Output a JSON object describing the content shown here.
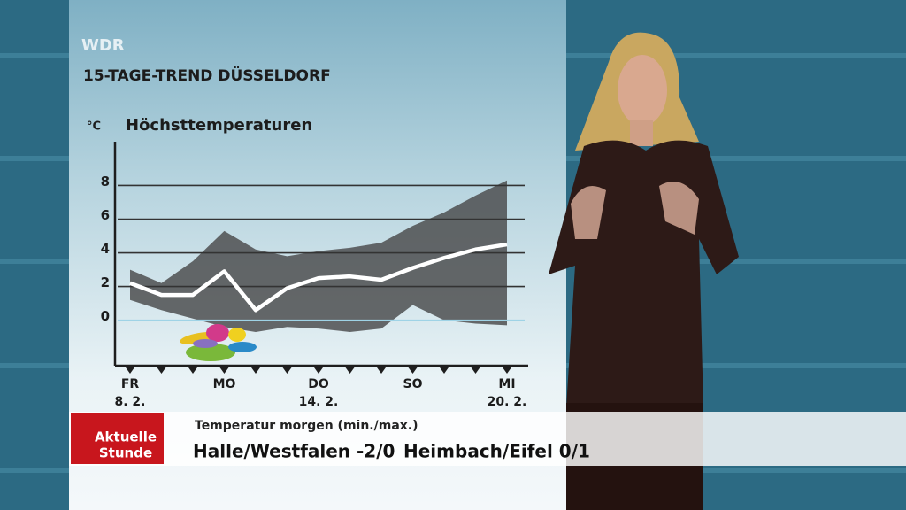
{
  "header": {
    "brand": "WDR",
    "title": "15-TAGE-TREND DÜSSELDORF"
  },
  "chart_data": {
    "type": "line",
    "title": "Höchsttemperaturen",
    "y_unit": "°C",
    "categories": [
      "FR",
      null,
      null,
      "MO",
      null,
      null,
      "DO",
      null,
      null,
      "SO",
      null,
      null,
      "MI"
    ],
    "dates": [
      "8. 2.",
      null,
      null,
      null,
      null,
      null,
      "14. 2.",
      null,
      null,
      null,
      null,
      null,
      "20. 2."
    ],
    "values": [
      2.2,
      1.5,
      1.5,
      2.9,
      0.6,
      1.9,
      2.5,
      2.6,
      2.4,
      3.1,
      3.7,
      4.2,
      4.5
    ],
    "color": "#ffffff",
    "range": {
      "high": [
        3.0,
        2.2,
        3.5,
        5.3,
        4.2,
        3.8,
        4.1,
        4.3,
        4.6,
        5.6,
        6.4,
        7.4,
        8.3
      ],
      "low": [
        1.2,
        0.6,
        0.1,
        -0.4,
        -0.7,
        -0.4,
        -0.5,
        -0.7,
        -0.5,
        0.9,
        0.0,
        -0.2,
        -0.3
      ],
      "color": "#4d4f50"
    },
    "ylim": [
      -2.7,
      10.6
    ],
    "yticks": [
      0,
      2,
      4,
      6,
      8
    ],
    "grid": true
  },
  "ticker": {
    "logo": [
      "Aktuelle",
      "Stunde"
    ],
    "caption": "Temperatur morgen (min./max.)",
    "items": [
      "Halle/Westfalen -2/0",
      "Heimbach/Eifel 0/1"
    ]
  }
}
